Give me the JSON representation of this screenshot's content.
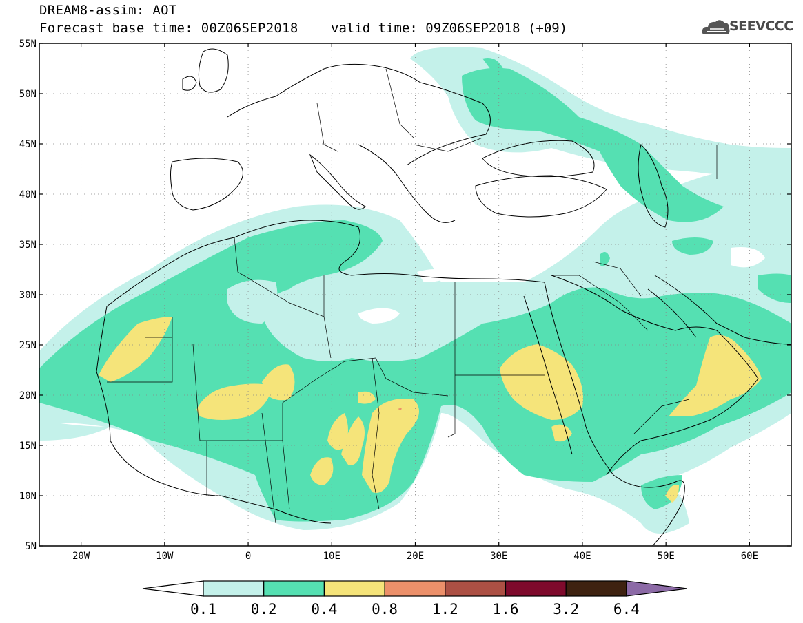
{
  "header": {
    "title": "DREAM8-assim: AOT",
    "base_time": "Forecast base time: 00Z06SEP2018",
    "valid_time": "valid time: 09Z06SEP2018 (+09)",
    "logo_text": "SEEVCCC",
    "logo_icon": "cloud-icon"
  },
  "map": {
    "lat_ticks": [
      "55N",
      "50N",
      "45N",
      "40N",
      "35N",
      "30N",
      "25N",
      "20N",
      "15N",
      "10N",
      "5N"
    ],
    "lon_ticks": [
      "20W",
      "10W",
      "0",
      "10E",
      "20E",
      "30E",
      "40E",
      "50E",
      "60E"
    ],
    "lon_range": [
      -25,
      65
    ],
    "lat_range": [
      5,
      55
    ],
    "grid": true
  },
  "legend": {
    "levels": [
      "0.1",
      "0.2",
      "0.4",
      "0.8",
      "1.2",
      "1.6",
      "3.2",
      "6.4"
    ],
    "colors": [
      "#ffffff",
      "#c4f1ea",
      "#55e0b2",
      "#f5e47a",
      "#ec906a",
      "#ac5044",
      "#7e0a2c",
      "#3e2210",
      "#8c6aa6"
    ]
  }
}
